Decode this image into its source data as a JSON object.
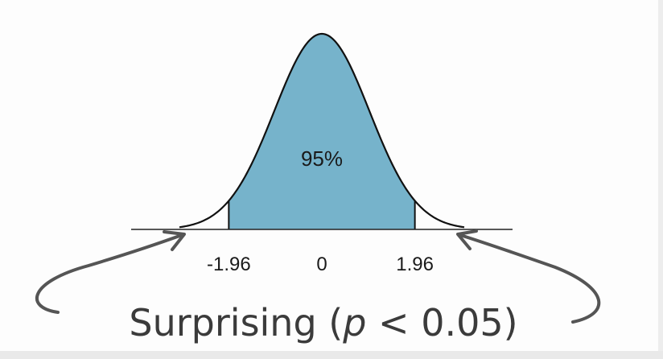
{
  "chart_data": {
    "type": "area",
    "distribution": "standard normal",
    "x_range": [
      -3.0,
      3.0
    ],
    "shaded_interval": [
      -1.96,
      1.96
    ],
    "shaded_label": "95%",
    "tick_labels": [
      "-1.96",
      "0",
      "1.96"
    ],
    "tick_values": [
      -1.96,
      0,
      1.96
    ],
    "annotation": {
      "text_before": "Surprising (",
      "italic": "p",
      "text_after": " < 0.05)",
      "arrows_point_to": [
        "left tail",
        "right tail"
      ]
    },
    "colors": {
      "fill": "#76b3cb",
      "curve": "#111111",
      "arrow": "#555555",
      "annotation_text": "#3b3b3b"
    }
  }
}
